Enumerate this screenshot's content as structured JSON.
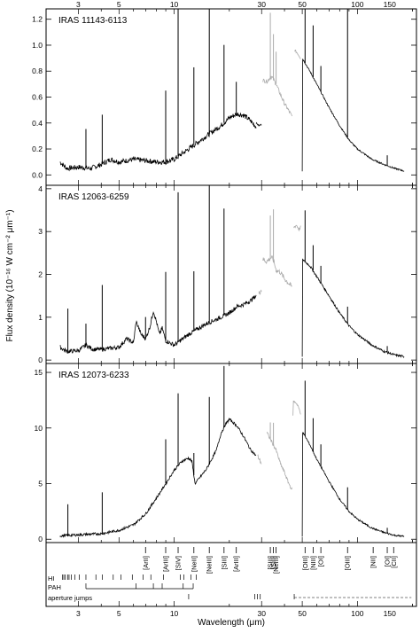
{
  "chart_data": {
    "type": "line",
    "x_scale": "log",
    "xlabel": "Wavelength (μm)",
    "ylabel": "Flux density (10⁻¹⁶ W cm⁻² μm⁻¹)",
    "x_ticks": [
      3,
      5,
      10,
      30,
      50,
      100,
      150
    ],
    "xlim": [
      2.0,
      210.0
    ],
    "panels": [
      {
        "name": "IRAS 11143-6113",
        "ylim": [
          -0.08,
          1.28
        ],
        "y_ticks": [
          0.0,
          0.2,
          0.4,
          0.6,
          0.8,
          1.0,
          1.2
        ],
        "y_tick_labels": [
          "0.0",
          "0.2",
          "0.4",
          "0.6",
          "0.8",
          "1.0",
          "1.2"
        ],
        "series": [
          {
            "color": "#000000",
            "noise": 0.02,
            "x": [
              2.38,
              2.6,
              3.0,
              3.5,
              4.0,
              4.5,
              5.0,
              6.0,
              7.0,
              8.0,
              9.0,
              10.0,
              12.0,
              15.0,
              18.0,
              20.0,
              22.0,
              24.0,
              26.0,
              28.0
            ],
            "y": [
              0.1,
              0.05,
              0.06,
              0.05,
              0.08,
              0.12,
              0.1,
              0.12,
              0.11,
              0.1,
              0.1,
              0.12,
              0.2,
              0.3,
              0.38,
              0.44,
              0.47,
              0.46,
              0.42,
              0.37
            ]
          },
          {
            "color": "#000000",
            "noise": 0.005,
            "x": [
              28.0,
              29.0,
              30.0
            ],
            "y": [
              0.4,
              0.38,
              0.39
            ]
          },
          {
            "color": "#aaaaaa",
            "noise": 0.015,
            "x": [
              30.5,
              32.0,
              34.0,
              36.0,
              38.0,
              40.0,
              42.0,
              44.0
            ],
            "y": [
              0.73,
              0.72,
              0.76,
              0.7,
              0.62,
              0.55,
              0.5,
              0.45
            ]
          },
          {
            "color": "#aaaaaa",
            "noise": 0.01,
            "x": [
              45.5,
              47.0,
              48.0,
              49.0
            ],
            "y": [
              0.96,
              0.94,
              0.92,
              0.9
            ]
          },
          {
            "color": "#000000",
            "noise": 0.006,
            "x": [
              50.0,
              55.0,
              60.0,
              70.0,
              80.0,
              90.0,
              100.0,
              120.0,
              140.0,
              160.0,
              180.0
            ],
            "y": [
              0.9,
              0.8,
              0.7,
              0.52,
              0.38,
              0.27,
              0.2,
              0.12,
              0.08,
              0.05,
              0.03
            ]
          }
        ],
        "lines": [
          {
            "x": 3.3,
            "h": 0.3
          },
          {
            "x": 4.05,
            "h": 0.38
          },
          {
            "x": 8.99,
            "h": 0.55
          },
          {
            "x": 10.51,
            "h": 1.2
          },
          {
            "x": 12.81,
            "h": 0.6
          },
          {
            "x": 15.55,
            "h": 1.2
          },
          {
            "x": 18.71,
            "h": 0.6
          },
          {
            "x": 21.83,
            "h": 0.25
          },
          {
            "x": 33.48,
            "h": 0.5
          },
          {
            "x": 34.81,
            "h": 0.35
          },
          {
            "x": 36.0,
            "h": 0.25
          },
          {
            "x": 51.81,
            "h": 0.5
          },
          {
            "x": 57.32,
            "h": 0.4
          },
          {
            "x": 63.18,
            "h": 0.2
          },
          {
            "x": 88.36,
            "h": 1.1
          },
          {
            "x": 145.5,
            "h": 0.08
          }
        ]
      },
      {
        "name": "IRAS 12063-6259",
        "ylim": [
          -0.08,
          4.08
        ],
        "y_ticks": [
          0,
          1,
          2,
          3,
          4
        ],
        "y_tick_labels": [
          "0",
          "1",
          "2",
          "3",
          "4"
        ],
        "series": [
          {
            "color": "#000000",
            "noise": 0.05,
            "x": [
              2.38,
              2.6,
              3.0,
              3.3,
              3.6,
              4.0,
              5.0,
              5.5,
              6.0,
              6.2,
              6.6,
              7.0,
              7.4,
              7.7,
              8.0,
              8.3,
              8.6,
              9.0,
              10.0,
              12.0,
              15.0,
              18.0,
              20.0,
              22.0,
              24.0,
              26.0,
              28.0
            ],
            "y": [
              0.3,
              0.2,
              0.22,
              0.35,
              0.25,
              0.25,
              0.3,
              0.5,
              0.4,
              0.9,
              0.6,
              0.5,
              0.8,
              1.15,
              0.9,
              0.6,
              0.75,
              0.45,
              0.35,
              0.6,
              0.85,
              1.0,
              1.1,
              1.25,
              1.3,
              1.38,
              1.5
            ]
          },
          {
            "color": "#aaaaaa",
            "noise": 0.06,
            "x": [
              29.0,
              30.0
            ],
            "y": [
              1.55,
              1.65
            ]
          },
          {
            "color": "#aaaaaa",
            "noise": 0.06,
            "x": [
              30.5,
              32.0,
              34.0,
              35.0,
              36.0,
              38.0,
              40.0,
              42.0,
              44.0
            ],
            "y": [
              2.35,
              2.3,
              2.4,
              2.3,
              2.1,
              2.05,
              1.9,
              1.8,
              1.7
            ]
          },
          {
            "color": "#aaaaaa",
            "noise": 0.04,
            "x": [
              45.0,
              46.5,
              48.0,
              49.0
            ],
            "y": [
              3.1,
              3.15,
              3.05,
              3.1
            ]
          },
          {
            "color": "#000000",
            "noise": 0.025,
            "x": [
              50.0,
              55.0,
              60.0,
              70.0,
              80.0,
              90.0,
              100.0,
              120.0,
              140.0,
              160.0,
              180.0
            ],
            "y": [
              2.35,
              2.2,
              1.95,
              1.5,
              1.1,
              0.8,
              0.6,
              0.35,
              0.2,
              0.12,
              0.08
            ]
          }
        ],
        "lines": [
          {
            "x": 2.63,
            "h": 1.0
          },
          {
            "x": 3.3,
            "h": 0.5
          },
          {
            "x": 4.05,
            "h": 1.5
          },
          {
            "x": 6.98,
            "h": 0.5
          },
          {
            "x": 8.99,
            "h": 1.6
          },
          {
            "x": 10.51,
            "h": 3.5
          },
          {
            "x": 12.81,
            "h": 1.4
          },
          {
            "x": 15.55,
            "h": 3.2
          },
          {
            "x": 18.71,
            "h": 2.5
          },
          {
            "x": 33.48,
            "h": 1.0
          },
          {
            "x": 34.81,
            "h": 1.2
          },
          {
            "x": 51.81,
            "h": 1.2
          },
          {
            "x": 57.32,
            "h": 0.6
          },
          {
            "x": 63.18,
            "h": 0.4
          },
          {
            "x": 88.36,
            "h": 0.4
          },
          {
            "x": 145.5,
            "h": 0.15
          }
        ]
      },
      {
        "name": "IRAS 12073-6233",
        "ylim": [
          -0.3,
          15.8
        ],
        "y_ticks": [
          0,
          5,
          10,
          15
        ],
        "y_tick_labels": [
          "0",
          "5",
          "10",
          "15"
        ],
        "series": [
          {
            "color": "#000000",
            "noise": 0.12,
            "x": [
              2.38,
              3.0,
              4.0,
              5.0,
              6.0,
              7.0,
              8.0,
              9.0,
              10.0,
              11.0,
              12.0,
              12.5,
              13.0,
              15.0,
              17.0,
              18.0,
              19.0,
              20.0,
              22.0,
              24.0,
              26.0,
              28.0
            ],
            "y": [
              0.3,
              0.4,
              0.5,
              0.8,
              1.3,
              2.3,
              3.7,
              5.0,
              6.2,
              7.0,
              7.3,
              7.0,
              5.0,
              6.3,
              8.0,
              9.5,
              10.3,
              10.8,
              10.2,
              9.2,
              8.1,
              7.5
            ]
          },
          {
            "color": "#aaaaaa",
            "noise": 0.2,
            "x": [
              28.5,
              30.0
            ],
            "y": [
              7.5,
              6.8
            ]
          },
          {
            "color": "#aaaaaa",
            "noise": 0.15,
            "x": [
              32.0,
              34.0,
              36.0,
              38.0,
              40.0,
              42.0,
              44.0
            ],
            "y": [
              9.6,
              8.8,
              8.0,
              6.8,
              6.0,
              5.1,
              4.4
            ]
          },
          {
            "color": "#aaaaaa",
            "noise": 0.1,
            "x": [
              44.5,
              46.0,
              47.5,
              49.0
            ],
            "y": [
              12.4,
              12.3,
              12.0,
              11.2
            ]
          },
          {
            "color": "#000000",
            "noise": 0.08,
            "x": [
              50.0,
              55.0,
              60.0,
              70.0,
              80.0,
              90.0,
              100.0,
              120.0,
              140.0,
              160.0,
              180.0
            ],
            "y": [
              9.7,
              8.5,
              7.2,
              5.2,
              3.6,
              2.5,
              1.8,
              1.0,
              0.6,
              0.35,
              0.25
            ]
          }
        ],
        "lines": [
          {
            "x": 2.63,
            "h": 2.8
          },
          {
            "x": 4.05,
            "h": 3.7
          },
          {
            "x": 8.99,
            "h": 4.0
          },
          {
            "x": 10.51,
            "h": 6.5
          },
          {
            "x": 12.81,
            "h": 2.0
          },
          {
            "x": 15.55,
            "h": 6.0
          },
          {
            "x": 18.71,
            "h": 5.5
          },
          {
            "x": 33.48,
            "h": 1.5
          },
          {
            "x": 34.81,
            "h": 2.0
          },
          {
            "x": 51.81,
            "h": 5.0
          },
          {
            "x": 57.32,
            "h": 3.0
          },
          {
            "x": 63.18,
            "h": 2.0
          },
          {
            "x": 88.36,
            "h": 2.0
          },
          {
            "x": 145.5,
            "h": 0.5
          }
        ]
      }
    ],
    "identifications": {
      "ions": [
        {
          "label": "[ArII]",
          "x": 6.98
        },
        {
          "label": "[ArIII]",
          "x": 8.99
        },
        {
          "label": "[SIV]",
          "x": 10.51
        },
        {
          "label": "[NeII]",
          "x": 12.81
        },
        {
          "label": "[NeIII]",
          "x": 15.55
        },
        {
          "label": "[SIII]",
          "x": 18.71
        },
        {
          "label": "[ArIII]",
          "x": 21.83
        },
        {
          "label": "[SIII]",
          "x": 33.48
        },
        {
          "label": "[SiII]",
          "x": 34.81
        },
        {
          "label": "[NeIII]",
          "x": 36.01
        },
        {
          "label": "[OIII]",
          "x": 51.81
        },
        {
          "label": "[NIII]",
          "x": 57.32
        },
        {
          "label": "[OI]",
          "x": 63.18
        },
        {
          "label": "[OIII]",
          "x": 88.36
        },
        {
          "label": "[NII]",
          "x": 121.9
        },
        {
          "label": "[OI]",
          "x": 145.5
        },
        {
          "label": "[CII]",
          "x": 157.7
        }
      ],
      "rows": [
        {
          "label": "HI",
          "marks": [
            2.46,
            2.5,
            2.55,
            2.63,
            2.67,
            2.75,
            2.87,
            3.04,
            3.3,
            3.74,
            4.05,
            4.65,
            5.13,
            5.91,
            6.77,
            7.46,
            8.76,
            10.8,
            11.31,
            12.37,
            13.19
          ]
        },
        {
          "label": "PAH",
          "marks": [
            3.3,
            6.2,
            7.7,
            8.6,
            11.2,
            12.7
          ],
          "span": [
            3.3,
            12.7
          ]
        },
        {
          "label": "aperture jumps",
          "marks": [
            12.0,
            27.5,
            28.5,
            29.5,
            45.2
          ],
          "dashed_from": 45.2,
          "dashed_to": 197.0
        }
      ]
    }
  }
}
